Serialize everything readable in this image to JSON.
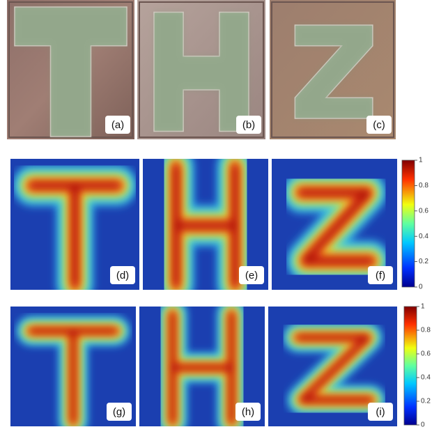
{
  "panels": [
    {
      "label": "(a)"
    },
    {
      "label": "(b)"
    },
    {
      "label": "(c)"
    },
    {
      "label": "(d)"
    },
    {
      "label": "(e)"
    },
    {
      "label": "(f)"
    },
    {
      "label": "(g)"
    },
    {
      "label": "(h)"
    },
    {
      "label": "(i)"
    }
  ],
  "colorbars": [
    {
      "ticks": [
        1,
        0.8,
        0.6,
        0.4,
        0.2,
        0
      ]
    },
    {
      "ticks": [
        1,
        0.8,
        0.6,
        0.4,
        0.2,
        0
      ]
    }
  ]
}
